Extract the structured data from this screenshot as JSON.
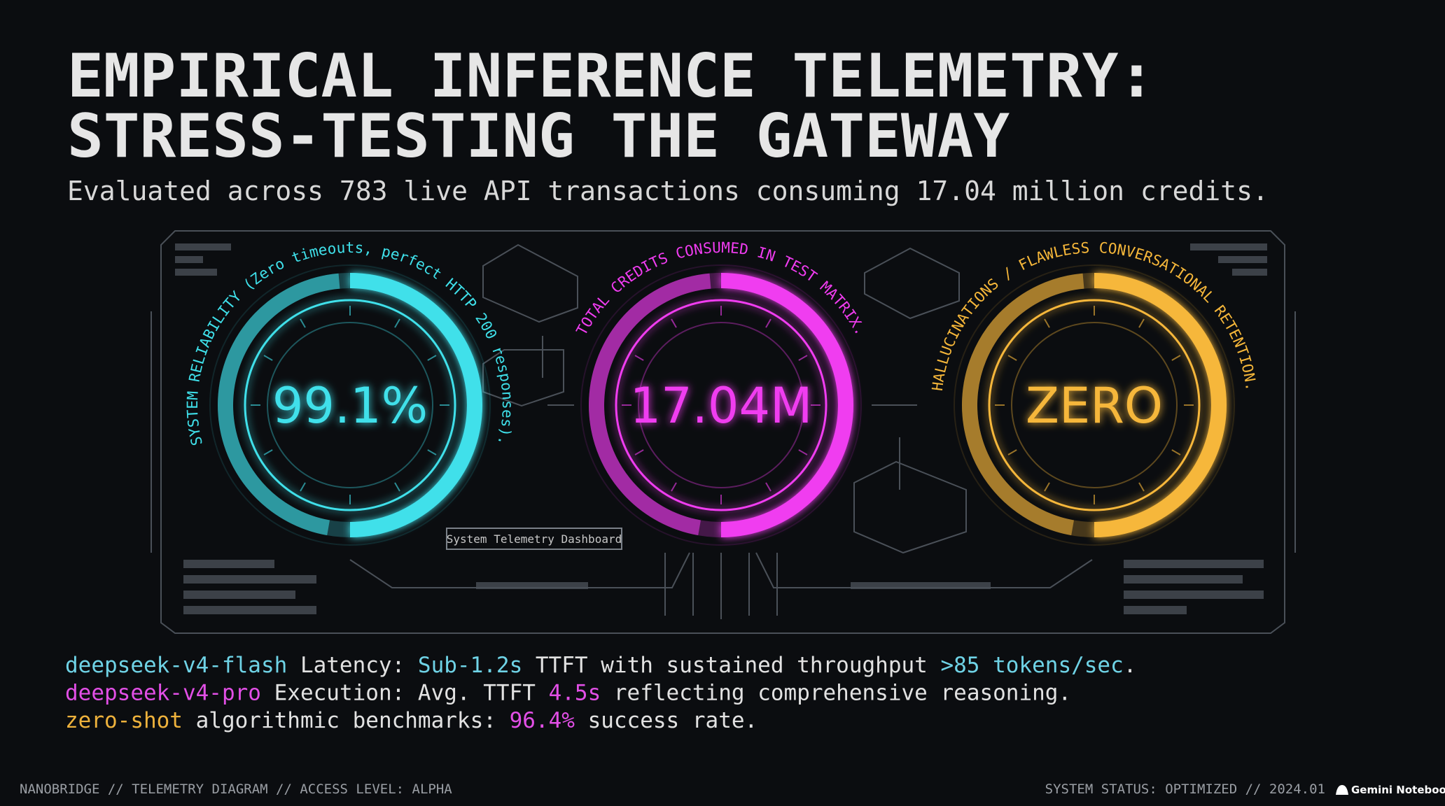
{
  "header": {
    "title_lines": [
      "EMPIRICAL INFERENCE TELEMETRY:",
      "STRESS-TESTING THE GATEWAY"
    ],
    "subtitle": "Evaluated across 783 live API transactions consuming 17.04 million credits."
  },
  "gauges": [
    {
      "label": "SYSTEM RELIABILITY (Zero timeouts, perfect HTTP 200 responses).",
      "value": "99.1%",
      "color": "#3fe0ea"
    },
    {
      "label": "TOTAL CREDITS CONSUMED IN TEST MATRIX.",
      "value": "17.04M",
      "color": "#f03cf0"
    },
    {
      "label": "HALLUCINATIONS / FLAWLESS CONVERSATIONAL RETENTION.",
      "value": "ZERO",
      "color": "#f6b73a"
    }
  ],
  "dashboard_label": "System Telemetry Dashboard",
  "findings": [
    {
      "segments": [
        {
          "text": "deepseek-v4-flash",
          "color": "#6fd3e6"
        },
        {
          "text": " Latency: "
        },
        {
          "text": "Sub-1.2s",
          "color": "#6fd3e6"
        },
        {
          "text": " TTFT with sustained throughput "
        },
        {
          "text": ">85 tokens/sec",
          "color": "#6fd3e6"
        },
        {
          "text": "."
        }
      ]
    },
    {
      "segments": [
        {
          "text": "deepseek-v4-pro",
          "color": "#e24fe6"
        },
        {
          "text": " Execution: Avg. TTFT "
        },
        {
          "text": "4.5s",
          "color": "#e24fe6"
        },
        {
          "text": " reflecting comprehensive reasoning."
        }
      ]
    },
    {
      "segments": [
        {
          "text": "zero-shot",
          "color": "#eeb23c"
        },
        {
          "text": " algorithmic benchmarks: "
        },
        {
          "text": "96.4%",
          "color": "#e24fe6"
        },
        {
          "text": " success rate."
        }
      ]
    }
  ],
  "footer": {
    "left": "NANOBRIDGE // TELEMETRY DIAGRAM // ACCESS LEVEL: ALPHA",
    "right": "SYSTEM STATUS: OPTIMIZED // 2024.01",
    "brand": "Gemini Notebook"
  }
}
